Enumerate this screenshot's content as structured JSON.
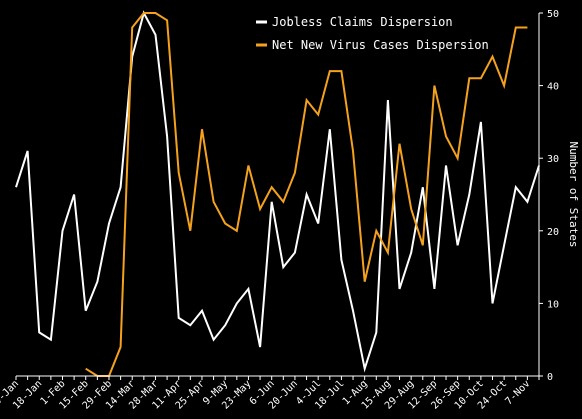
{
  "chart_data": {
    "type": "line",
    "ylabel": "Number of States",
    "ylim": [
      0,
      50
    ],
    "yticks": [
      0,
      10,
      20,
      30,
      40,
      50
    ],
    "y_axis_side": "right",
    "grid": false,
    "legend_position": "top-center",
    "categories": [
      "4-Jan",
      "11-Jan",
      "18-Jan",
      "25-Jan",
      "1-Feb",
      "8-Feb",
      "15-Feb",
      "22-Feb",
      "29-Feb",
      "7-Mar",
      "14-Mar",
      "21-Mar",
      "28-Mar",
      "4-Apr",
      "11-Apr",
      "18-Apr",
      "25-Apr",
      "2-May",
      "9-May",
      "16-May",
      "23-May",
      "30-May",
      "6-Jun",
      "13-Jun",
      "20-Jun",
      "27-Jun",
      "4-Jul",
      "11-Jul",
      "18-Jul",
      "25-Jul",
      "1-Aug",
      "8-Aug",
      "15-Aug",
      "22-Aug",
      "29-Aug",
      "5-Sep",
      "12-Sep",
      "19-Sep",
      "26-Sep",
      "3-Oct",
      "10-Oct",
      "17-Oct",
      "24-Oct",
      "31-Oct",
      "7-Nov",
      "14-Nov"
    ],
    "tick_labels": [
      "4-Jan",
      "18-Jan",
      "1-Feb",
      "15-Feb",
      "29-Feb",
      "14-Mar",
      "28-Mar",
      "11-Apr",
      "25-Apr",
      "9-May",
      "23-May",
      "6-Jun",
      "20-Jun",
      "4-Jul",
      "18-Jul",
      "1-Aug",
      "15-Aug",
      "29-Aug",
      "12-Sep",
      "26-Sep",
      "10-Oct",
      "24-Oct",
      "7-Nov"
    ],
    "series": [
      {
        "name": "Jobless Claims Dispersion",
        "color": "#ffffff",
        "values": [
          26,
          31,
          6,
          5,
          20,
          25,
          9,
          13,
          21,
          26,
          44,
          50,
          47,
          33,
          8,
          7,
          9,
          5,
          7,
          10,
          12,
          4,
          24,
          15,
          17,
          25,
          21,
          34,
          16,
          9,
          1,
          6,
          38,
          12,
          17,
          26,
          12,
          29,
          18,
          25,
          35,
          10,
          18,
          26,
          24,
          29
        ]
      },
      {
        "name": "Net New Virus Cases Dispersion",
        "color": "#f4a21d",
        "values": [
          null,
          null,
          null,
          null,
          null,
          null,
          1,
          0,
          0,
          4,
          48,
          50,
          50,
          49,
          28,
          20,
          34,
          24,
          21,
          20,
          29,
          23,
          26,
          24,
          28,
          38,
          36,
          42,
          42,
          31,
          13,
          20,
          17,
          32,
          23,
          18,
          40,
          33,
          30,
          41,
          41,
          44,
          40,
          48,
          48,
          null
        ]
      }
    ]
  }
}
